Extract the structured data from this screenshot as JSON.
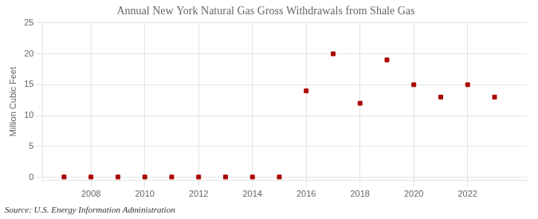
{
  "chart_data": {
    "type": "scatter",
    "title": "Annual New York Natural Gas Gross Withdrawals from Shale Gas",
    "ylabel": "Million Cubic Feet",
    "source": "Source: U.S. Energy Information Administration",
    "x": [
      2007,
      2008,
      2009,
      2010,
      2011,
      2012,
      2013,
      2014,
      2015,
      2016,
      2017,
      2018,
      2019,
      2020,
      2021,
      2022,
      2023
    ],
    "values": [
      0.05,
      0.05,
      0.05,
      0.05,
      0.05,
      0.05,
      0.05,
      0.05,
      0.05,
      14.0,
      20.0,
      12.0,
      19.0,
      15.0,
      13.0,
      15.0,
      13.0
    ],
    "color": "#aa0000",
    "marker": "square",
    "xlim": [
      2006.2,
      2024.2
    ],
    "xticks": [
      2008,
      2010,
      2012,
      2014,
      2016,
      2018,
      2020,
      2022
    ],
    "ylim": [
      -0.5,
      25
    ],
    "yticks": [
      0,
      5,
      10,
      15,
      20,
      25
    ],
    "grid": true
  }
}
